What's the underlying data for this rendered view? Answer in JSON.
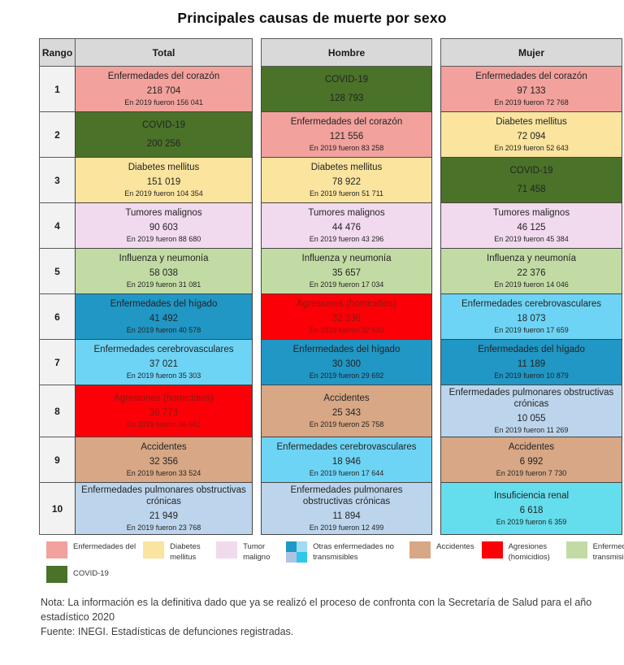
{
  "title": "Principales causas de muerte por sexo",
  "colors": {
    "heart": "#f2a19c",
    "covid": "#4a7228",
    "diabetes": "#fae49e",
    "tumor": "#f2daee",
    "transmissible": "#c2dba4",
    "liver": "#2097c5",
    "cerebrovascular": "#6ed4f5",
    "homicide": "#fb0007",
    "accident": "#d8a785",
    "copd": "#bdd5ec",
    "renal": "#64deec",
    "header_bg": "#d9d9d9",
    "rank_bg": "#f2f2f2",
    "legend_grid": [
      "#1e99c7",
      "#9fdcee",
      "#aec4e2",
      "#30c7e8"
    ]
  },
  "table": {
    "headers": {
      "rank": "Rango",
      "total": "Total",
      "male": "Hombre",
      "female": "Mujer"
    },
    "rows": [
      {
        "rank": "1",
        "total": {
          "name": "Enfermedades del corazón",
          "value": "218 704",
          "note": "En 2019 fueron 156 041",
          "category": "heart"
        },
        "male": {
          "name": "COVID-19",
          "value": "128 793",
          "note": "",
          "category": "covid"
        },
        "female": {
          "name": "Enfermedades del corazón",
          "value": "97 133",
          "note": "En 2019 fueron 72 768",
          "category": "heart"
        }
      },
      {
        "rank": "2",
        "total": {
          "name": "COVID-19",
          "value": "200 256",
          "note": "",
          "category": "covid"
        },
        "male": {
          "name": "Enfermedades del corazón",
          "value": "121 556",
          "note": "En 2019 fueron 83 258",
          "category": "heart"
        },
        "female": {
          "name": "Diabetes mellitus",
          "value": "72 094",
          "note": "En 2019 fueron 52 643",
          "category": "diabetes"
        }
      },
      {
        "rank": "3",
        "total": {
          "name": "Diabetes mellitus",
          "value": "151 019",
          "note": "En 2019 fueron 104 354",
          "category": "diabetes"
        },
        "male": {
          "name": "Diabetes mellitus",
          "value": "78 922",
          "note": "En 2019 fueron 51 711",
          "category": "diabetes"
        },
        "female": {
          "name": "COVID-19",
          "value": "71 458",
          "note": "",
          "category": "covid"
        }
      },
      {
        "rank": "4",
        "total": {
          "name": "Tumores malignos",
          "value": "90 603",
          "note": "En 2019 fueron 88 680",
          "category": "tumor"
        },
        "male": {
          "name": "Tumores malignos",
          "value": "44 476",
          "note": "En 2019 fueron 43 296",
          "category": "tumor"
        },
        "female": {
          "name": "Tumores malignos",
          "value": "46 125",
          "note": "En 2019 fueron 45 384",
          "category": "tumor"
        }
      },
      {
        "rank": "5",
        "total": {
          "name": "Influenza y neumonía",
          "value": "58 038",
          "note": "En 2019 fueron 31 081",
          "category": "transmissible"
        },
        "male": {
          "name": "Influenza y neumonía",
          "value": "35 657",
          "note": "En 2019 fueron 17 034",
          "category": "transmissible"
        },
        "female": {
          "name": "Influenza y neumonía",
          "value": "22 376",
          "note": "En 2019 fueron 14 046",
          "category": "transmissible"
        }
      },
      {
        "rank": "6",
        "total": {
          "name": "Enfermedades del hígado",
          "value": "41 492",
          "note": "En 2019 fueron 40 578",
          "category": "liver"
        },
        "male": {
          "name": "Agresiones (homicidios)",
          "value": "32 336",
          "note": "En 2019 fueron 32 530",
          "category": "homicide"
        },
        "female": {
          "name": "Enfermedades cerebrovasculares",
          "value": "18 073",
          "note": "En 2019 fueron 17 659",
          "category": "cerebrovascular"
        }
      },
      {
        "rank": "7",
        "total": {
          "name": "Enfermedades cerebrovasculares",
          "value": "37 021",
          "note": "En 2019 fueron 35 303",
          "category": "cerebrovascular"
        },
        "male": {
          "name": "Enfermedades del hígado",
          "value": "30 300",
          "note": "En 2019 fueron 29 692",
          "category": "liver"
        },
        "female": {
          "name": "Enfermedades del hígado",
          "value": "11 189",
          "note": "En 2019 fueron 10 879",
          "category": "liver"
        }
      },
      {
        "rank": "8",
        "total": {
          "name": "Agresiones (homicidios)",
          "value": "36 773",
          "note": "En 2019 fueron 36 661",
          "category": "homicide"
        },
        "male": {
          "name": "Accidentes",
          "value": "25 343",
          "note": "En 2019 fueron 25 758",
          "category": "accident"
        },
        "female": {
          "name": "Enfermedades pulmonares obstructivas crónicas",
          "value": "10 055",
          "note": "En 2019 fueron 11 269",
          "category": "copd"
        }
      },
      {
        "rank": "9",
        "total": {
          "name": "Accidentes",
          "value": "32 356",
          "note": "En 2019 fueron 33 524",
          "category": "accident"
        },
        "male": {
          "name": "Enfermedades cerebrovasculares",
          "value": "18 946",
          "note": "En 2019 fueron 17 644",
          "category": "cerebrovascular"
        },
        "female": {
          "name": "Accidentes",
          "value": "6 992",
          "note": "En 2019 fueron 7 730",
          "category": "accident"
        }
      },
      {
        "rank": "10",
        "total": {
          "name": "Enfermedades pulmonares obstructivas crónicas",
          "value": "21 949",
          "note": "En 2019 fueron 23 768",
          "category": "copd"
        },
        "male": {
          "name": "Enfermedades pulmonares obstructivas crónicas",
          "value": "11 894",
          "note": "En 2019 fueron 12 499",
          "category": "copd"
        },
        "female": {
          "name": "Insuficiencia renal",
          "value": "6 618",
          "note": "En 2019 fueron 6 359",
          "category": "renal"
        }
      }
    ]
  },
  "legend": {
    "items": [
      {
        "label": "Enfermedades del",
        "swatch": "heart"
      },
      {
        "label": "Diabetes mellitus",
        "swatch": "diabetes"
      },
      {
        "label": "Tumor maligno",
        "swatch": "tumor"
      },
      {
        "label": "Otras enfermedades no transmisibles",
        "swatch": "grid"
      },
      {
        "label": "Accidentes",
        "swatch": "accident"
      },
      {
        "label": "Agresiones (homicidios)",
        "swatch": "homicide"
      },
      {
        "label": "Enfermedades transmisibles",
        "swatch": "transmissible"
      },
      {
        "label": "COVID-19",
        "swatch": "covid"
      }
    ]
  },
  "notes": {
    "nota": "Nota: La información es la definitiva dado que ya se realizó el proceso de confronta con la Secretaría de Salud para el año estadístico 2020",
    "fuente": "Fuente: INEGI. Estadísticas de defunciones registradas."
  },
  "chart_data": {
    "type": "table",
    "title": "Principales causas de muerte por sexo",
    "columns": [
      "Rango",
      "Total",
      "Hombre",
      "Mujer"
    ],
    "ranks": [
      1,
      2,
      3,
      4,
      5,
      6,
      7,
      8,
      9,
      10
    ],
    "series": [
      {
        "name": "Total",
        "causes": [
          "Enfermedades del corazón",
          "COVID-19",
          "Diabetes mellitus",
          "Tumores malignos",
          "Influenza y neumonía",
          "Enfermedades del hígado",
          "Enfermedades cerebrovasculares",
          "Agresiones (homicidios)",
          "Accidentes",
          "Enfermedades pulmonares obstructivas crónicas"
        ],
        "values_2020": [
          218704,
          200256,
          151019,
          90603,
          58038,
          41492,
          37021,
          36773,
          32356,
          21949
        ],
        "values_2019": [
          156041,
          null,
          104354,
          88680,
          31081,
          40578,
          35303,
          36661,
          33524,
          23768
        ]
      },
      {
        "name": "Hombre",
        "causes": [
          "COVID-19",
          "Enfermedades del corazón",
          "Diabetes mellitus",
          "Tumores malignos",
          "Influenza y neumonía",
          "Agresiones (homicidios)",
          "Enfermedades del hígado",
          "Accidentes",
          "Enfermedades cerebrovasculares",
          "Enfermedades pulmonares obstructivas crónicas"
        ],
        "values_2020": [
          128793,
          121556,
          78922,
          44476,
          35657,
          32336,
          30300,
          25343,
          18946,
          11894
        ],
        "values_2019": [
          null,
          83258,
          51711,
          43296,
          17034,
          32530,
          29692,
          25758,
          17644,
          12499
        ]
      },
      {
        "name": "Mujer",
        "causes": [
          "Enfermedades del corazón",
          "Diabetes mellitus",
          "COVID-19",
          "Tumores malignos",
          "Influenza y neumonía",
          "Enfermedades cerebrovasculares",
          "Enfermedades del hígado",
          "Enfermedades pulmonares obstructivas crónicas",
          "Accidentes",
          "Insuficiencia renal"
        ],
        "values_2020": [
          97133,
          72094,
          71458,
          46125,
          22376,
          18073,
          11189,
          10055,
          6992,
          6618
        ],
        "values_2019": [
          72768,
          52643,
          null,
          45384,
          14046,
          17659,
          10879,
          11269,
          7730,
          6359
        ]
      }
    ],
    "legend_entries": [
      "Enfermedades del",
      "COVID-19",
      "Diabetes mellitus",
      "Tumor maligno",
      "Otras enfermedades no transmisibles",
      "Accidentes",
      "Agresiones (homicidios)",
      "Enfermedades transmisibles"
    ],
    "legend_position": "bottom",
    "grid": false
  }
}
